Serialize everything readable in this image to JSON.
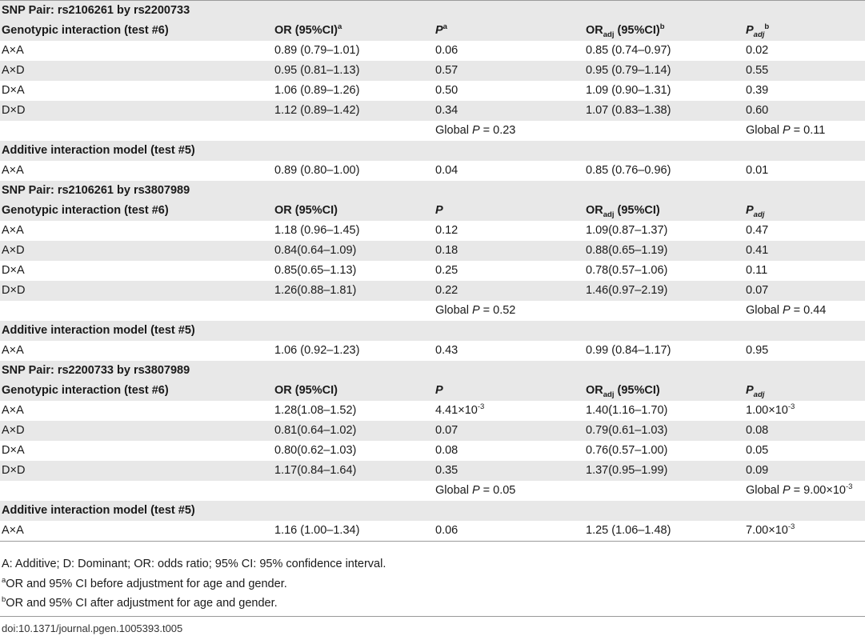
{
  "sections": [
    {
      "title": "SNP Pair: rs2106261 by rs2200733",
      "geno_label": "Genotypic interaction (test #6)",
      "headers": {
        "or": "OR (95%CI)",
        "or_sup": "a",
        "p": "P",
        "p_sup": "a",
        "oradj": "OR",
        "oradj_sub": "adj",
        "oradj_tail": " (95%CI)",
        "oradj_sup": "b",
        "padj": "P",
        "padj_sub": "adj",
        "padj_sup": "b"
      },
      "rows": [
        {
          "label": "A×A",
          "or": "0.89 (0.79–1.01)",
          "p": "0.06",
          "oradj": "0.85 (0.74–0.97)",
          "padj": "0.02"
        },
        {
          "label": "A×D",
          "or": "0.95 (0.81–1.13)",
          "p": "0.57",
          "oradj": "0.95 (0.79–1.14)",
          "padj": "0.55"
        },
        {
          "label": "D×A",
          "or": "1.06 (0.89–1.26)",
          "p": "0.50",
          "oradj": "1.09 (0.90–1.31)",
          "padj": "0.39"
        },
        {
          "label": "D×D",
          "or": "1.12 (0.89–1.42)",
          "p": "0.34",
          "oradj": "1.07 (0.83–1.38)",
          "padj": "0.60"
        }
      ],
      "global_p": {
        "prefix": "Global ",
        "p": "P",
        "value": " = 0.23"
      },
      "global_padj": {
        "prefix": "Global ",
        "p": "P",
        "value": " = 0.11"
      },
      "additive_label": "Additive interaction model (test #5)",
      "additive_row": {
        "label": "A×A",
        "or": "0.89 (0.80–1.00)",
        "p": "0.04",
        "oradj": "0.85 (0.76–0.96)",
        "padj": "0.01"
      }
    },
    {
      "title": "SNP Pair: rs2106261 by rs3807989",
      "geno_label": "Genotypic interaction (test #6)",
      "headers": {
        "or": "OR (95%CI)",
        "p": "P",
        "oradj": "OR",
        "oradj_sub": "adj",
        "oradj_tail": " (95%CI)",
        "padj": "P",
        "padj_sub": "adj"
      },
      "rows": [
        {
          "label": "A×A",
          "or": "1.18 (0.96–1.45)",
          "p": "0.12",
          "oradj": "1.09(0.87–1.37)",
          "padj": "0.47"
        },
        {
          "label": "A×D",
          "or": "0.84(0.64–1.09)",
          "p": "0.18",
          "oradj": "0.88(0.65–1.19)",
          "padj": "0.41"
        },
        {
          "label": "D×A",
          "or": "0.85(0.65–1.13)",
          "p": "0.25",
          "oradj": "0.78(0.57–1.06)",
          "padj": "0.11"
        },
        {
          "label": "D×D",
          "or": "1.26(0.88–1.81)",
          "p": "0.22",
          "oradj": "1.46(0.97–2.19)",
          "padj": "0.07"
        }
      ],
      "global_p": {
        "prefix": "Global ",
        "p": "P",
        "value": " = 0.52"
      },
      "global_padj": {
        "prefix": "Global ",
        "p": "P",
        "value": " = 0.44"
      },
      "additive_label": "Additive interaction model (test #5)",
      "additive_row": {
        "label": "A×A",
        "or": "1.06 (0.92–1.23)",
        "p": "0.43",
        "oradj": "0.99 (0.84–1.17)",
        "padj": "0.95"
      }
    },
    {
      "title": "SNP Pair: rs2200733 by rs3807989",
      "geno_label": "Genotypic interaction (test #6)",
      "headers": {
        "or": "OR (95%CI)",
        "p": "P",
        "oradj": "OR",
        "oradj_sub": "adj",
        "oradj_tail": " (95%CI)",
        "padj": "P",
        "padj_sub": "adj"
      },
      "rows": [
        {
          "label": "A×A",
          "or": "1.28(1.08–1.52)",
          "p_base": "4.41×10",
          "p_exp": "-3",
          "oradj": "1.40(1.16–1.70)",
          "padj_base": "1.00×10",
          "padj_exp": "-3"
        },
        {
          "label": "A×D",
          "or": "0.81(0.64–1.02)",
          "p": "0.07",
          "oradj": "0.79(0.61–1.03)",
          "padj": "0.08"
        },
        {
          "label": "D×A",
          "or": "0.80(0.62–1.03)",
          "p": "0.08",
          "oradj": "0.76(0.57–1.00)",
          "padj": "0.05"
        },
        {
          "label": "D×D",
          "or": "1.17(0.84–1.64)",
          "p": "0.35",
          "oradj": "1.37(0.95–1.99)",
          "padj": "0.09"
        }
      ],
      "global_p": {
        "prefix": "Global ",
        "p": "P",
        "value": " = 0.05"
      },
      "global_padj": {
        "prefix": "Global ",
        "p": "P",
        "value": " = 9.00×10",
        "exp": "-3"
      },
      "additive_label": "Additive interaction model (test #5)",
      "additive_row": {
        "label": "A×A",
        "or": "1.16 (1.00–1.34)",
        "p": "0.06",
        "oradj": "1.25 (1.06–1.48)",
        "padj_base": "7.00×10",
        "padj_exp": "-3"
      }
    }
  ],
  "footnotes": {
    "abbrev": "A: Additive; D: Dominant; OR: odds ratio; 95% CI: 95% confidence interval.",
    "a_mark": "a",
    "a_text": "OR and 95% CI before adjustment for age and gender.",
    "b_mark": "b",
    "b_text": "OR and 95% CI after adjustment for age and gender."
  },
  "doi": "doi:10.1371/journal.pgen.1005393.t005",
  "colors": {
    "shade": "#e8e8e8",
    "rule": "#9a9a9a"
  }
}
